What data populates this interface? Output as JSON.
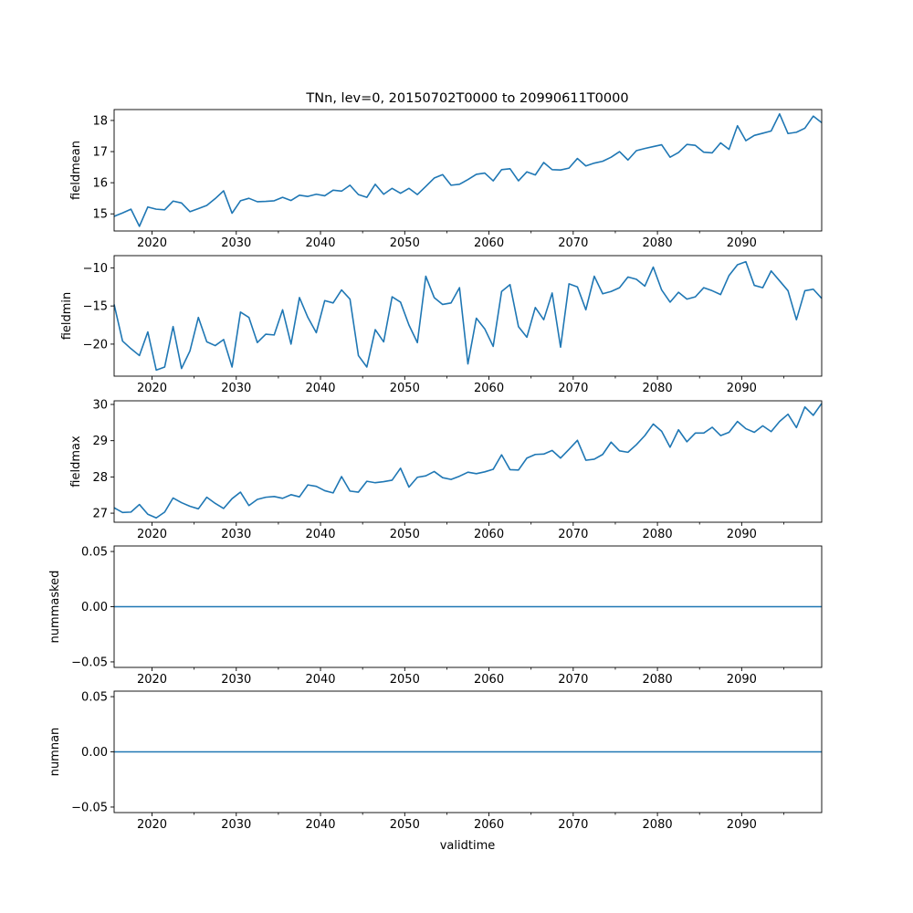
{
  "title": "TNn, lev=0, 20150702T0000 to 20990611T0000",
  "xlabel": "validtime",
  "line_color": "#1f77b4",
  "x_ticks": [
    2020,
    2030,
    2040,
    2050,
    2060,
    2070,
    2080,
    2090
  ],
  "x_tick_labels": [
    "2020",
    "2030",
    "2040",
    "2050",
    "2060",
    "2070",
    "2080",
    "2090"
  ],
  "chart_data": [
    {
      "type": "line",
      "name": "fieldmean",
      "ylabel": "fieldmean",
      "xlim": [
        2015.5,
        2099.5
      ],
      "ylim": [
        14.45,
        18.35
      ],
      "y_ticks": [
        15,
        16,
        17,
        18
      ],
      "y_tick_labels": [
        "15",
        "16",
        "17",
        "18"
      ],
      "x": [
        2015.5,
        2016.5,
        2017.5,
        2018.5,
        2019.5,
        2020.5,
        2021.5,
        2022.5,
        2023.5,
        2024.5,
        2025.5,
        2026.5,
        2027.5,
        2028.5,
        2029.5,
        2030.5,
        2031.5,
        2032.5,
        2033.5,
        2034.5,
        2035.5,
        2036.5,
        2037.5,
        2038.5,
        2039.5,
        2040.5,
        2041.5,
        2042.5,
        2043.5,
        2044.5,
        2045.5,
        2046.5,
        2047.5,
        2048.5,
        2049.5,
        2050.5,
        2051.5,
        2052.5,
        2053.5,
        2054.5,
        2055.5,
        2056.5,
        2057.5,
        2058.5,
        2059.5,
        2060.5,
        2061.5,
        2062.5,
        2063.5,
        2064.5,
        2065.5,
        2066.5,
        2067.5,
        2068.5,
        2069.5,
        2070.5,
        2071.5,
        2072.5,
        2073.5,
        2074.5,
        2075.5,
        2076.5,
        2077.5,
        2078.5,
        2079.5,
        2080.5,
        2081.5,
        2082.5,
        2083.5,
        2084.5,
        2085.5,
        2086.5,
        2087.5,
        2088.5,
        2089.5,
        2090.5,
        2091.5,
        2092.5,
        2093.5,
        2094.5,
        2095.5,
        2096.5,
        2097.5,
        2098.5,
        2099.5
      ],
      "y": [
        14.92,
        15.03,
        15.15,
        14.6,
        15.22,
        15.15,
        15.13,
        15.41,
        15.35,
        15.07,
        15.17,
        15.27,
        15.49,
        15.74,
        15.02,
        15.42,
        15.5,
        15.39,
        15.4,
        15.42,
        15.53,
        15.43,
        15.6,
        15.56,
        15.63,
        15.58,
        15.76,
        15.73,
        15.92,
        15.62,
        15.53,
        15.95,
        15.63,
        15.82,
        15.66,
        15.82,
        15.62,
        15.88,
        16.15,
        16.26,
        15.92,
        15.95,
        16.1,
        16.27,
        16.31,
        16.06,
        16.42,
        16.45,
        16.06,
        16.35,
        16.25,
        16.65,
        16.42,
        16.41,
        16.47,
        16.78,
        16.54,
        16.63,
        16.69,
        16.82,
        17.0,
        16.73,
        17.03,
        17.1,
        17.16,
        17.22,
        16.82,
        16.97,
        17.23,
        17.2,
        16.98,
        16.96,
        17.28,
        17.07,
        17.83,
        17.35,
        17.52,
        17.59,
        17.66,
        18.21,
        17.58,
        17.62,
        17.75,
        18.14,
        17.93
      ]
    },
    {
      "type": "line",
      "name": "fieldmin",
      "ylabel": "fieldmin",
      "xlim": [
        2015.5,
        2099.5
      ],
      "ylim": [
        -24.2,
        -8.4
      ],
      "y_ticks": [
        -20,
        -15,
        -10
      ],
      "y_tick_labels": [
        "−20",
        "−15",
        "−10"
      ],
      "x": [
        2015.5,
        2016.5,
        2017.5,
        2018.5,
        2019.5,
        2020.5,
        2021.5,
        2022.5,
        2023.5,
        2024.5,
        2025.5,
        2026.5,
        2027.5,
        2028.5,
        2029.5,
        2030.5,
        2031.5,
        2032.5,
        2033.5,
        2034.5,
        2035.5,
        2036.5,
        2037.5,
        2038.5,
        2039.5,
        2040.5,
        2041.5,
        2042.5,
        2043.5,
        2044.5,
        2045.5,
        2046.5,
        2047.5,
        2048.5,
        2049.5,
        2050.5,
        2051.5,
        2052.5,
        2053.5,
        2054.5,
        2055.5,
        2056.5,
        2057.5,
        2058.5,
        2059.5,
        2060.5,
        2061.5,
        2062.5,
        2063.5,
        2064.5,
        2065.5,
        2066.5,
        2067.5,
        2068.5,
        2069.5,
        2070.5,
        2071.5,
        2072.5,
        2073.5,
        2074.5,
        2075.5,
        2076.5,
        2077.5,
        2078.5,
        2079.5,
        2080.5,
        2081.5,
        2082.5,
        2083.5,
        2084.5,
        2085.5,
        2086.5,
        2087.5,
        2088.5,
        2089.5,
        2090.5,
        2091.5,
        2092.5,
        2093.5,
        2094.5,
        2095.5,
        2096.5,
        2097.5,
        2098.5,
        2099.5
      ],
      "y": [
        -14.8,
        -19.6,
        -20.6,
        -21.5,
        -18.4,
        -23.4,
        -23.0,
        -17.7,
        -23.2,
        -20.9,
        -16.5,
        -19.7,
        -20.2,
        -19.4,
        -23.0,
        -15.8,
        -16.5,
        -19.8,
        -18.7,
        -18.8,
        -15.5,
        -20.0,
        -13.9,
        -16.5,
        -18.5,
        -14.3,
        -14.6,
        -12.9,
        -14.1,
        -21.5,
        -23.0,
        -18.1,
        -19.7,
        -13.8,
        -14.5,
        -17.5,
        -19.8,
        -11.1,
        -13.9,
        -14.8,
        -14.6,
        -12.6,
        -22.6,
        -16.6,
        -18.0,
        -20.3,
        -13.1,
        -12.2,
        -17.7,
        -19.1,
        -15.2,
        -16.8,
        -13.3,
        -20.4,
        -12.1,
        -12.5,
        -15.5,
        -11.1,
        -13.4,
        -13.1,
        -12.6,
        -11.2,
        -11.5,
        -12.4,
        -9.9,
        -12.9,
        -14.5,
        -13.2,
        -14.1,
        -13.8,
        -12.6,
        -13.0,
        -13.5,
        -11.0,
        -9.6,
        -9.2,
        -12.3,
        -12.6,
        -10.4,
        -11.7,
        -13.0,
        -16.8,
        -13.0,
        -12.8,
        -14.0
      ]
    },
    {
      "type": "line",
      "name": "fieldmax",
      "ylabel": "fieldmax",
      "xlim": [
        2015.5,
        2099.5
      ],
      "ylim": [
        26.75,
        30.1
      ],
      "y_ticks": [
        27,
        28,
        29,
        30
      ],
      "y_tick_labels": [
        "27",
        "28",
        "29",
        "30"
      ],
      "x": [
        2015.5,
        2016.5,
        2017.5,
        2018.5,
        2019.5,
        2020.5,
        2021.5,
        2022.5,
        2023.5,
        2024.5,
        2025.5,
        2026.5,
        2027.5,
        2028.5,
        2029.5,
        2030.5,
        2031.5,
        2032.5,
        2033.5,
        2034.5,
        2035.5,
        2036.5,
        2037.5,
        2038.5,
        2039.5,
        2040.5,
        2041.5,
        2042.5,
        2043.5,
        2044.5,
        2045.5,
        2046.5,
        2047.5,
        2048.5,
        2049.5,
        2050.5,
        2051.5,
        2052.5,
        2053.5,
        2054.5,
        2055.5,
        2056.5,
        2057.5,
        2058.5,
        2059.5,
        2060.5,
        2061.5,
        2062.5,
        2063.5,
        2064.5,
        2065.5,
        2066.5,
        2067.5,
        2068.5,
        2069.5,
        2070.5,
        2071.5,
        2072.5,
        2073.5,
        2074.5,
        2075.5,
        2076.5,
        2077.5,
        2078.5,
        2079.5,
        2080.5,
        2081.5,
        2082.5,
        2083.5,
        2084.5,
        2085.5,
        2086.5,
        2087.5,
        2088.5,
        2089.5,
        2090.5,
        2091.5,
        2092.5,
        2093.5,
        2094.5,
        2095.5,
        2096.5,
        2097.5,
        2098.5,
        2099.5
      ],
      "y": [
        27.15,
        27.02,
        27.03,
        27.24,
        26.97,
        26.87,
        27.03,
        27.42,
        27.29,
        27.19,
        27.12,
        27.44,
        27.27,
        27.13,
        27.4,
        27.58,
        27.21,
        27.38,
        27.44,
        27.46,
        27.41,
        27.51,
        27.45,
        27.78,
        27.74,
        27.62,
        27.56,
        28.01,
        27.61,
        27.58,
        27.88,
        27.84,
        27.87,
        27.91,
        28.24,
        27.72,
        27.99,
        28.03,
        28.15,
        27.98,
        27.93,
        28.02,
        28.13,
        28.09,
        28.14,
        28.21,
        28.61,
        28.2,
        28.19,
        28.52,
        28.62,
        28.63,
        28.73,
        28.52,
        28.76,
        29.01,
        28.46,
        28.49,
        28.62,
        28.96,
        28.72,
        28.68,
        28.89,
        29.14,
        29.46,
        29.26,
        28.82,
        29.3,
        28.97,
        29.21,
        29.21,
        29.37,
        29.14,
        29.23,
        29.53,
        29.33,
        29.23,
        29.41,
        29.25,
        29.53,
        29.73,
        29.36,
        29.93,
        29.7,
        30.03
      ]
    },
    {
      "type": "line",
      "name": "nummasked",
      "ylabel": "nummasked",
      "xlim": [
        2015.5,
        2099.5
      ],
      "ylim": [
        -0.055,
        0.055
      ],
      "y_ticks": [
        -0.05,
        0.0,
        0.05
      ],
      "y_tick_labels": [
        "−0.05",
        "0.00",
        "0.05"
      ],
      "x": [
        2015.5,
        2099.5
      ],
      "y": [
        0,
        0
      ]
    },
    {
      "type": "line",
      "name": "numnan",
      "ylabel": "numnan",
      "xlim": [
        2015.5,
        2099.5
      ],
      "ylim": [
        -0.055,
        0.055
      ],
      "y_ticks": [
        -0.05,
        0.0,
        0.05
      ],
      "y_tick_labels": [
        "−0.05",
        "0.00",
        "0.05"
      ],
      "x": [
        2015.5,
        2099.5
      ],
      "y": [
        0,
        0
      ]
    }
  ]
}
